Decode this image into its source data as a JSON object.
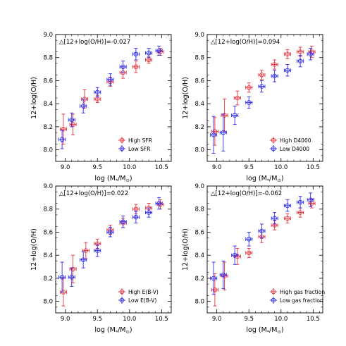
{
  "figure": {
    "xlabel_text": "log (M",
    "xlabel_sub1": "*",
    "xlabel_mid": "/M",
    "xlabel_sub2": "⊙",
    "xlabel_close": ")",
    "ylabel": "12+log(O/H)"
  },
  "colors": {
    "red": "#e8323c",
    "blue": "#2a2aef"
  },
  "chart_data": [
    {
      "type": "scatter",
      "annotation": "△[12+log(O/H)]=-0.027",
      "xlim": [
        8.85,
        10.65
      ],
      "ylim": [
        7.9,
        9.0
      ],
      "xticks": [
        "9.0",
        "9.5",
        "10.0",
        "10.5"
      ],
      "yticks": [
        "8.0",
        "8.2",
        "8.4",
        "8.6",
        "8.8",
        "9.0"
      ],
      "legend_position": "lower-right",
      "series": [
        {
          "name": "High SFR",
          "color": "red",
          "x": [
            8.97,
            9.12,
            9.3,
            9.5,
            9.7,
            9.9,
            10.1,
            10.3,
            10.48
          ],
          "y": [
            8.18,
            8.22,
            8.44,
            8.44,
            8.59,
            8.67,
            8.72,
            8.78,
            8.85
          ],
          "yerr": [
            0.13,
            0.09,
            0.08,
            0.03,
            0.04,
            0.05,
            0.05,
            0.03,
            0.03
          ]
        },
        {
          "name": "Low SFR",
          "color": "blue",
          "x": [
            8.95,
            9.1,
            9.28,
            9.5,
            9.7,
            9.9,
            10.1,
            10.3,
            10.46
          ],
          "y": [
            8.09,
            8.26,
            8.38,
            8.5,
            8.61,
            8.72,
            8.83,
            8.84,
            8.86
          ],
          "yerr": [
            0.08,
            0.06,
            0.06,
            0.04,
            0.05,
            0.05,
            0.05,
            0.04,
            0.04
          ]
        }
      ]
    },
    {
      "type": "scatter",
      "annotation": "△[12+log(O/H)]=0.094",
      "xlim": [
        8.85,
        10.65
      ],
      "ylim": [
        7.9,
        9.0
      ],
      "xticks": [
        "9.0",
        "9.5",
        "10.0",
        "10.5"
      ],
      "yticks": [
        "8.0",
        "8.2",
        "8.4",
        "8.6",
        "8.8",
        "9.0"
      ],
      "legend_position": "lower-right",
      "series": [
        {
          "name": "High D4000",
          "color": "red",
          "x": [
            8.97,
            9.12,
            9.32,
            9.5,
            9.7,
            9.9,
            10.1,
            10.3,
            10.48
          ],
          "y": [
            8.16,
            8.3,
            8.45,
            8.54,
            8.65,
            8.74,
            8.83,
            8.85,
            8.85
          ],
          "yerr": [
            0.12,
            0.14,
            0.06,
            0.04,
            0.04,
            0.04,
            0.04,
            0.04,
            0.05
          ]
        },
        {
          "name": "Low D4000",
          "color": "blue",
          "x": [
            8.95,
            9.1,
            9.28,
            9.5,
            9.7,
            9.9,
            10.1,
            10.3,
            10.46
          ],
          "y": [
            8.13,
            8.15,
            8.3,
            8.41,
            8.55,
            8.64,
            8.69,
            8.77,
            8.83
          ],
          "yerr": [
            0.16,
            0.16,
            0.08,
            0.05,
            0.05,
            0.05,
            0.05,
            0.05,
            0.05
          ]
        }
      ]
    },
    {
      "type": "scatter",
      "annotation": "△[12+log(O/H)]=0.022",
      "xlim": [
        8.85,
        10.65
      ],
      "ylim": [
        7.9,
        9.0
      ],
      "xticks": [
        "9.0",
        "9.5",
        "10.0",
        "10.5"
      ],
      "yticks": [
        "8.0",
        "8.2",
        "8.4",
        "8.6",
        "8.8",
        "9.0"
      ],
      "legend_position": "lower-right",
      "series": [
        {
          "name": "High E(B-V)",
          "color": "red",
          "x": [
            8.97,
            9.12,
            9.32,
            9.5,
            9.7,
            9.9,
            10.1,
            10.3,
            10.48
          ],
          "y": [
            8.08,
            8.28,
            8.44,
            8.5,
            8.62,
            8.68,
            8.8,
            8.81,
            8.84
          ],
          "yerr": [
            0.12,
            0.12,
            0.07,
            0.04,
            0.04,
            0.04,
            0.04,
            0.04,
            0.04
          ]
        },
        {
          "name": "Low E(B-V)",
          "color": "blue",
          "x": [
            8.95,
            9.1,
            9.28,
            9.5,
            9.7,
            9.9,
            10.1,
            10.3,
            10.46
          ],
          "y": [
            8.21,
            8.21,
            8.36,
            8.44,
            8.6,
            8.69,
            8.73,
            8.77,
            8.85
          ],
          "yerr": [
            0.13,
            0.08,
            0.07,
            0.05,
            0.04,
            0.05,
            0.05,
            0.04,
            0.05
          ]
        }
      ]
    },
    {
      "type": "scatter",
      "annotation": "△[12+log(O/H)]=-0.062",
      "xlim": [
        8.85,
        10.65
      ],
      "ylim": [
        7.9,
        9.0
      ],
      "xticks": [
        "9.0",
        "9.5",
        "10.0",
        "10.5"
      ],
      "yticks": [
        "8.0",
        "8.2",
        "8.4",
        "8.6",
        "8.8",
        "9.0"
      ],
      "legend_position": "lower-right",
      "series": [
        {
          "name": "High gas fraction",
          "color": "red",
          "x": [
            8.97,
            9.12,
            9.32,
            9.5,
            9.7,
            9.9,
            10.1,
            10.3,
            10.48
          ],
          "y": [
            8.1,
            8.22,
            8.39,
            8.42,
            8.56,
            8.66,
            8.72,
            8.77,
            8.85
          ],
          "yerr": [
            0.14,
            0.12,
            0.07,
            0.04,
            0.05,
            0.04,
            0.04,
            0.04,
            0.04
          ]
        },
        {
          "name": "Low gas fraction",
          "color": "blue",
          "x": [
            8.95,
            9.1,
            9.28,
            9.5,
            9.7,
            9.9,
            10.1,
            10.3,
            10.46
          ],
          "y": [
            8.2,
            8.23,
            8.4,
            8.54,
            8.61,
            8.72,
            8.83,
            8.86,
            8.88
          ],
          "yerr": [
            0.14,
            0.12,
            0.08,
            0.06,
            0.06,
            0.05,
            0.05,
            0.05,
            0.06
          ]
        }
      ]
    }
  ]
}
